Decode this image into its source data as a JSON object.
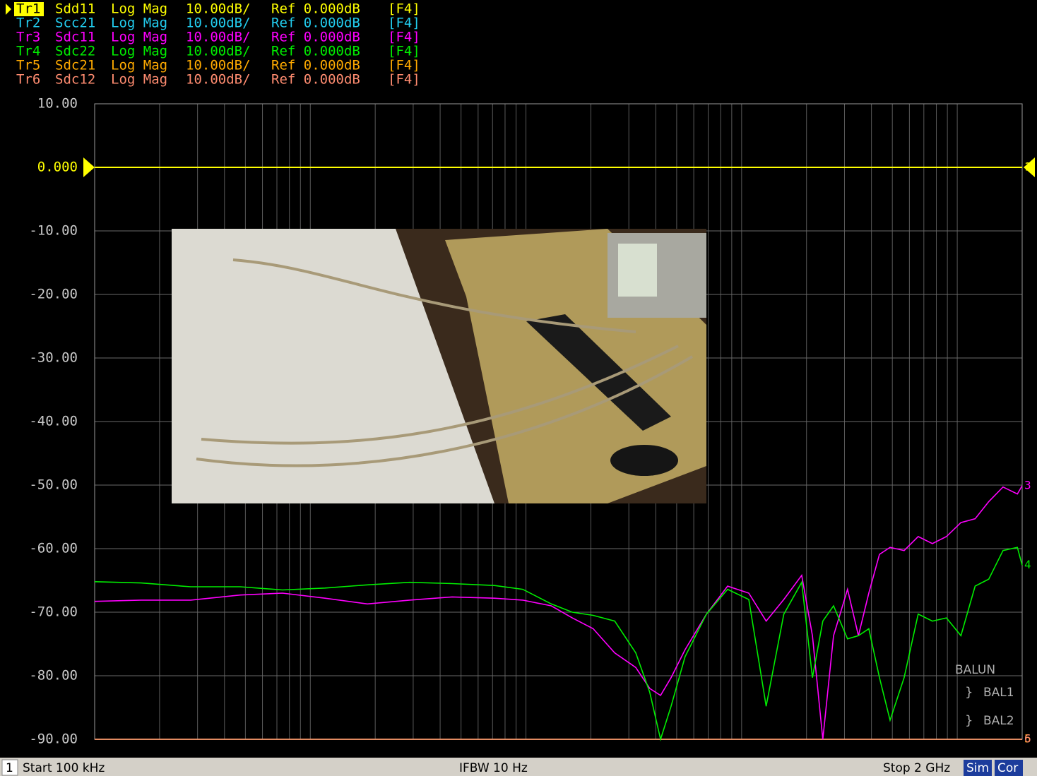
{
  "chart_data": {
    "type": "line",
    "xscale": "log",
    "xlim": [
      100000,
      2000000000
    ],
    "ylim": [
      -90,
      10
    ],
    "grid": true,
    "xticks": [
      100000,
      200000,
      300000,
      400000,
      500000,
      600000,
      700000,
      800000,
      900000,
      1000000,
      2000000,
      3000000,
      4000000,
      5000000,
      6000000,
      7000000,
      8000000,
      9000000,
      10000000,
      20000000,
      30000000,
      40000000,
      50000000,
      60000000,
      70000000,
      80000000,
      90000000,
      100000000,
      200000000,
      300000000,
      400000000,
      500000000,
      600000000,
      700000000,
      800000000,
      900000000,
      1000000000,
      2000000000
    ],
    "yticks": [
      {
        "value": 10,
        "label": "10.00"
      },
      {
        "value": 0,
        "label": "0.000"
      },
      {
        "value": -10,
        "label": "-10.00"
      },
      {
        "value": -20,
        "label": "-20.00"
      },
      {
        "value": -30,
        "label": "-30.00"
      },
      {
        "value": -40,
        "label": "-40.00"
      },
      {
        "value": -50,
        "label": "-50.00"
      },
      {
        "value": -60,
        "label": "-60.00"
      },
      {
        "value": -70,
        "label": "-70.00"
      },
      {
        "value": -80,
        "label": "-80.00"
      },
      {
        "value": -90,
        "label": "-90.00"
      }
    ],
    "x": [
      100000,
      164000,
      279000,
      473000,
      743000,
      1170000,
      1840000,
      2890000,
      4540000,
      7140000,
      9660000,
      13100000,
      16400000,
      20500000,
      25800000,
      32300000,
      37500000,
      42100000,
      47100000,
      54700000,
      68700000,
      86100000,
      108000000,
      130000000,
      157000000,
      190000000,
      213000000,
      238000000,
      267000000,
      310000000,
      348000000,
      389000000,
      436000000,
      488000000,
      567000000,
      659000000,
      767000000,
      891000000,
      1040000000,
      1210000000,
      1400000000,
      1630000000,
      1900000000,
      2000000000
    ],
    "series": [
      {
        "trace": "Tr1",
        "name": "Sdd11",
        "format": "Log Mag",
        "scale": "10.00dB/",
        "ref": "Ref 0.000dB",
        "channel": "[F4]",
        "color": "#ffff00",
        "end_label": "1",
        "values": [
          0,
          0,
          0,
          0,
          0,
          0,
          0,
          0,
          0,
          0,
          0,
          0,
          0,
          0,
          0,
          0,
          0,
          0,
          0,
          0,
          0,
          0,
          0,
          0,
          0,
          0,
          0,
          0,
          0,
          0,
          0,
          0,
          0,
          0,
          0,
          0,
          0,
          0,
          0,
          0,
          0,
          0,
          0,
          0
        ]
      },
      {
        "trace": "Tr2",
        "name": "Scc21",
        "format": "Log Mag",
        "scale": "10.00dB/",
        "ref": "Ref 0.000dB",
        "channel": "[F4]",
        "color": "#22ccee",
        "values": [
          -90,
          -90,
          -90,
          -90,
          -90,
          -90,
          -90,
          -90,
          -90,
          -90,
          -90,
          -90,
          -90,
          -90,
          -90,
          -90,
          -90,
          -90,
          -90,
          -90,
          -90,
          -90,
          -90,
          -90,
          -90,
          -90,
          -90,
          -90,
          -90,
          -90,
          -90,
          -90,
          -90,
          -90,
          -90,
          -90,
          -90,
          -90,
          -90,
          -90,
          -90,
          -90,
          -90,
          -90
        ]
      },
      {
        "trace": "Tr3",
        "name": "Sdc11",
        "format": "Log Mag",
        "scale": "10.00dB/",
        "ref": "Ref 0.000dB",
        "channel": "[F4]",
        "color": "#ff00ff",
        "end_label": "3",
        "values": [
          -68.3,
          -68.1,
          -68.1,
          -67.3,
          -67,
          -67.8,
          -68.7,
          -68.1,
          -67.6,
          -67.8,
          -68.1,
          -69,
          -70.9,
          -72.6,
          -76.4,
          -78.7,
          -82,
          -83.1,
          -80.3,
          -75.9,
          -70.3,
          -65.9,
          -67,
          -71.4,
          -68,
          -64.2,
          -73.7,
          -90,
          -73.7,
          -66.4,
          -73.7,
          -67,
          -60.9,
          -59.8,
          -60.3,
          -58.1,
          -59.2,
          -58.1,
          -55.9,
          -55.3,
          -52.6,
          -50.3,
          -51.4,
          -50.1
        ]
      },
      {
        "trace": "Tr4",
        "name": "Sdc22",
        "format": "Log Mag",
        "scale": "10.00dB/",
        "ref": "Ref 0.000dB",
        "channel": "[F4]",
        "color": "#00ee00",
        "end_label": "4",
        "values": [
          -65.2,
          -65.4,
          -66,
          -66,
          -66.5,
          -66.2,
          -65.7,
          -65.3,
          -65.5,
          -65.8,
          -66.4,
          -68.7,
          -70,
          -70.5,
          -71.4,
          -76.4,
          -82.6,
          -90,
          -84.8,
          -77,
          -70.3,
          -66.4,
          -68,
          -84.8,
          -70.3,
          -65.3,
          -80.3,
          -71.4,
          -69,
          -74.2,
          -73.7,
          -72.6,
          -80.3,
          -87,
          -80.3,
          -70.3,
          -71.4,
          -70.9,
          -73.7,
          -65.9,
          -64.8,
          -60.3,
          -59.8,
          -62.6
        ]
      },
      {
        "trace": "Tr5",
        "name": "Sdc21",
        "format": "Log Mag",
        "scale": "10.00dB/",
        "ref": "Ref 0.000dB",
        "channel": "[F4]",
        "color": "#ffaa00",
        "end_label": "5",
        "values": [
          -90,
          -90,
          -90,
          -90,
          -90,
          -90,
          -90,
          -90,
          -90,
          -90,
          -90,
          -90,
          -90,
          -90,
          -90,
          -90,
          -90,
          -90,
          -90,
          -90,
          -90,
          -90,
          -90,
          -90,
          -90,
          -90,
          -90,
          -90,
          -90,
          -90,
          -90,
          -90,
          -90,
          -90,
          -90,
          -90,
          -90,
          -90,
          -90,
          -90,
          -90,
          -90,
          -90,
          -90
        ]
      },
      {
        "trace": "Tr6",
        "name": "Sdc12",
        "format": "Log Mag",
        "scale": "10.00dB/",
        "ref": "Ref 0.000dB",
        "channel": "[F4]",
        "color": "#ff8c70",
        "end_label": "6",
        "values": [
          -90,
          -90,
          -90,
          -90,
          -90,
          -90,
          -90,
          -90,
          -90,
          -90,
          -90,
          -90,
          -90,
          -90,
          -90,
          -90,
          -90,
          -90,
          -90,
          -90,
          -90,
          -90,
          -90,
          -90,
          -90,
          -90,
          -90,
          -90,
          -90,
          -90,
          -90,
          -90,
          -90,
          -90,
          -90,
          -90,
          -90,
          -90,
          -90,
          -90,
          -90,
          -90,
          -90,
          -90
        ]
      }
    ],
    "balun": {
      "title": "BALUN",
      "ports": [
        "BAL1",
        "BAL2"
      ]
    }
  },
  "status_bar": {
    "channel": "1",
    "start": "Start 100 kHz",
    "ifbw": "IFBW 10 Hz",
    "stop": "Stop 2 GHz",
    "sim": "Sim",
    "cor": "Cor"
  }
}
